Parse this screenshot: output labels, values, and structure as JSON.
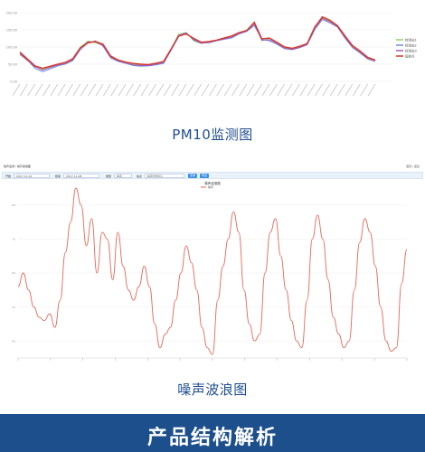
{
  "pm10_section": {
    "caption": "PM10监测图",
    "chart_data": {
      "type": "line",
      "y_ticks": [
        "200.00",
        "150.00",
        "100.00",
        "50.00",
        "0.00"
      ],
      "ylim": [
        0,
        200
      ],
      "legend_placement": "right",
      "series": [
        {
          "name": "检测站1",
          "color": "#8fce6a",
          "values": [
            78,
            60,
            45,
            35,
            42,
            48,
            52,
            65,
            100,
            118,
            112,
            105,
            72,
            60,
            55,
            50,
            48,
            47,
            52,
            56,
            95,
            138,
            142,
            118,
            110,
            115,
            120,
            125,
            130,
            140,
            150,
            170,
            118,
            125,
            112,
            98,
            95,
            100,
            108,
            160,
            185,
            175,
            160,
            130,
            100,
            85,
            68,
            60
          ]
        },
        {
          "name": "检测站2",
          "color": "#6f8fd8",
          "values": [
            82,
            62,
            38,
            28,
            36,
            45,
            50,
            60,
            92,
            112,
            118,
            102,
            68,
            58,
            52,
            46,
            44,
            45,
            48,
            52,
            90,
            130,
            140,
            122,
            112,
            112,
            118,
            122,
            126,
            138,
            145,
            162,
            122,
            118,
            108,
            95,
            92,
            98,
            106,
            150,
            180,
            170,
            158,
            125,
            98,
            82,
            65,
            58
          ]
        },
        {
          "name": "检测站3",
          "color": "#9a5cc6",
          "values": [
            80,
            61,
            42,
            32,
            40,
            47,
            51,
            62,
            96,
            115,
            115,
            104,
            70,
            59,
            53,
            48,
            46,
            46,
            50,
            54,
            92,
            134,
            141,
            120,
            111,
            113,
            119,
            124,
            128,
            139,
            147,
            166,
            120,
            121,
            110,
            96,
            93,
            99,
            107,
            155,
            183,
            173,
            159,
            128,
            99,
            84,
            66,
            59
          ]
        },
        {
          "name": "国控点",
          "color": "#d9342b",
          "values": [
            85,
            65,
            45,
            38,
            44,
            50,
            55,
            66,
            98,
            112,
            116,
            108,
            74,
            62,
            56,
            52,
            50,
            49,
            53,
            58,
            94,
            132,
            138,
            125,
            114,
            116,
            120,
            126,
            132,
            142,
            148,
            172,
            124,
            126,
            114,
            100,
            96,
            102,
            110,
            158,
            188,
            178,
            162,
            132,
            104,
            88,
            70,
            62
          ]
        }
      ]
    }
  },
  "noise_section": {
    "caption": "噪声波浪图",
    "toolbar": {
      "breadcrumb": "噪声监测 / 噪声波浪图",
      "top_links": "首页 | 退出",
      "label_start": "开始",
      "value_start": "2017-11-01",
      "label_end": "结束",
      "value_end": "2017-11-08",
      "label_type": "类型",
      "value_type": "噪声",
      "label_point": "站点",
      "value_point": "噪声监测点1",
      "btn_query": "查询",
      "btn_export": "导出"
    },
    "chart_data": {
      "type": "line",
      "title": "噪声波浪图",
      "legend": [
        "噪声"
      ],
      "series_color": "#e36a5c",
      "y_ticks": [
        "80",
        "70",
        "60",
        "50",
        "40"
      ],
      "ylim": [
        35,
        85
      ],
      "values": [
        56,
        60,
        55,
        50,
        47,
        46,
        48,
        44,
        52,
        66,
        75,
        85,
        80,
        68,
        76,
        60,
        72,
        70,
        58,
        72,
        62,
        55,
        52,
        56,
        62,
        56,
        45,
        38,
        42,
        44,
        52,
        60,
        68,
        63,
        55,
        44,
        38,
        36,
        52,
        62,
        70,
        78,
        72,
        55,
        45,
        40,
        42,
        60,
        72,
        76,
        65,
        55,
        46,
        40,
        38,
        52,
        70,
        77,
        70,
        58,
        47,
        42,
        38,
        40,
        55,
        69,
        76,
        72,
        62,
        50,
        40,
        37,
        38,
        57,
        67
      ]
    }
  },
  "footer": {
    "title": "产品结构解析"
  }
}
